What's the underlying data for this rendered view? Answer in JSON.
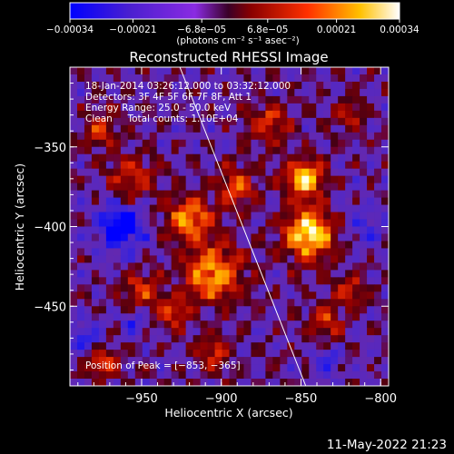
{
  "chart_data": {
    "type": "heatmap",
    "title": "Reconstructed RHESSI Image",
    "xlabel": "Heliocentric X (arcsec)",
    "ylabel": "Heliocentric Y (arcsec)",
    "xlim": [
      -995,
      -795
    ],
    "ylim": [
      -500,
      -300
    ],
    "x_ticks": [
      -950,
      -900,
      -850,
      -800
    ],
    "x_tick_labels": [
      "−950",
      "−900",
      "−850",
      "−800"
    ],
    "y_ticks": [
      -350,
      -400,
      -450
    ],
    "y_tick_labels": [
      "−350",
      "−400",
      "−450"
    ],
    "colorbar": {
      "min": -0.00034,
      "max": 0.00034,
      "tick_labels": [
        "−0.00034",
        "−0.00021",
        "−6.8e−05",
        "6.8e−05",
        "0.00021",
        "0.00034"
      ],
      "tick_values": [
        -0.00034,
        -0.00021,
        -6.8e-05,
        6.8e-05,
        0.00021,
        0.00034
      ],
      "unit_label": "(photons cm⁻² s⁻¹ asec⁻²)",
      "colors": [
        "#0000ff",
        "#5a2ab0",
        "#8a2be2",
        "#7a0000",
        "#d01800",
        "#ff6a00",
        "#ffd000",
        "#ffffff"
      ]
    },
    "annotations": {
      "time_range": "18-Jan-2014 03:26:12.000 to 03:32:12.000",
      "detectors": "Detectors: 3F 4F 5F 6F 7F 8F, Att 1",
      "energy": "Energy Range: 25.0 - 50.0 keV",
      "clean": "Clean     Total counts: 1.10E+04",
      "peak": "Position of Peak = [−853, −365]"
    },
    "peak": {
      "x": -853,
      "y": -365
    },
    "limb_line": {
      "x": [
        -926,
        -847
      ],
      "y": [
        -300,
        -500
      ]
    },
    "hotspots": [
      {
        "x": -845,
        "y": -405,
        "amp": 1.0,
        "r": 16
      },
      {
        "x": -848,
        "y": -370,
        "amp": 0.9,
        "r": 12
      },
      {
        "x": -905,
        "y": -430,
        "amp": 0.8,
        "r": 18
      },
      {
        "x": -920,
        "y": -395,
        "amp": 0.75,
        "r": 14
      },
      {
        "x": -890,
        "y": -375,
        "amp": 0.6,
        "r": 12
      },
      {
        "x": -955,
        "y": -370,
        "amp": 0.5,
        "r": 14
      },
      {
        "x": -975,
        "y": -340,
        "amp": 0.45,
        "r": 12
      },
      {
        "x": -870,
        "y": -335,
        "amp": 0.55,
        "r": 12
      },
      {
        "x": -975,
        "y": -485,
        "amp": 0.6,
        "r": 10
      },
      {
        "x": -905,
        "y": -480,
        "amp": 0.5,
        "r": 10
      },
      {
        "x": -835,
        "y": -460,
        "amp": 0.55,
        "r": 10
      },
      {
        "x": -950,
        "y": -440,
        "amp": 0.5,
        "r": 12
      },
      {
        "x": -820,
        "y": -440,
        "amp": 0.45,
        "r": 10
      },
      {
        "x": -930,
        "y": -455,
        "amp": 0.5,
        "r": 10
      },
      {
        "x": -820,
        "y": -330,
        "amp": 0.35,
        "r": 10
      }
    ],
    "coldspots": [
      {
        "x": -963,
        "y": -400,
        "amp": -0.7,
        "r": 14
      },
      {
        "x": -985,
        "y": -470,
        "amp": -0.4,
        "r": 10
      },
      {
        "x": -832,
        "y": -485,
        "amp": -0.4,
        "r": 8
      },
      {
        "x": -955,
        "y": -460,
        "amp": -0.35,
        "r": 8
      },
      {
        "x": -810,
        "y": -400,
        "amp": -0.3,
        "r": 12
      }
    ]
  },
  "footer": {
    "timestamp": "11-May-2022 21:23"
  }
}
